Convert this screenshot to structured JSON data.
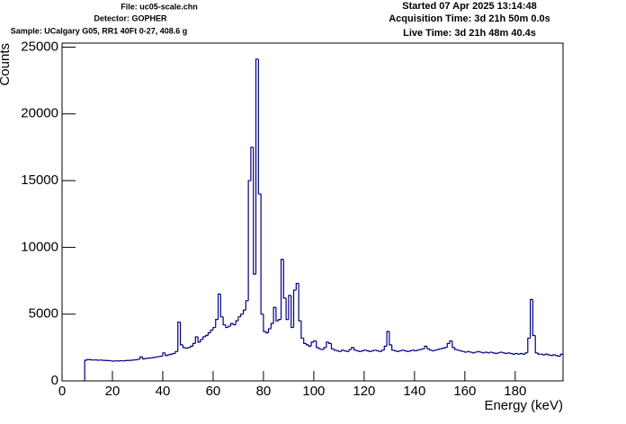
{
  "header": {
    "file": "File: uc05-scale.chn",
    "detector": "Detector: GOPHER",
    "sample": "Sample: UCalgary G05, RR1 40Ft 0-27, 408.6 g",
    "started": "Started 07 Apr 2025 13:14:48",
    "acquisition": "Acquisition Time: 3d 21h 50m 0.0s",
    "live": "Live Time: 3d 21h 48m 40.4s"
  },
  "chart_data": {
    "type": "histogram",
    "x_label": "Energy (keV)",
    "y_label": "Counts",
    "color": "#00007f",
    "xlim": [
      0,
      199
    ],
    "ylim": [
      0,
      25300
    ],
    "xticks": [
      0,
      20,
      40,
      60,
      80,
      100,
      120,
      140,
      160,
      180
    ],
    "yticks": [
      0,
      5000,
      10000,
      15000,
      20000,
      25000
    ],
    "bins": [
      9,
      10,
      11,
      12,
      13,
      14,
      15,
      16,
      17,
      18,
      19,
      20,
      21,
      22,
      23,
      24,
      25,
      26,
      27,
      28,
      29,
      30,
      31,
      32,
      33,
      34,
      35,
      36,
      37,
      38,
      39,
      40,
      41,
      42,
      43,
      44,
      45,
      46,
      47,
      48,
      49,
      50,
      51,
      52,
      53,
      54,
      55,
      56,
      57,
      58,
      59,
      60,
      61,
      62,
      63,
      64,
      65,
      66,
      67,
      68,
      69,
      70,
      71,
      72,
      73,
      74,
      75,
      76,
      77,
      78,
      79,
      80,
      81,
      82,
      83,
      84,
      85,
      86,
      87,
      88,
      89,
      90,
      91,
      92,
      93,
      94,
      95,
      96,
      97,
      98,
      99,
      100,
      101,
      102,
      103,
      104,
      105,
      106,
      107,
      108,
      109,
      110,
      111,
      112,
      113,
      114,
      115,
      116,
      117,
      118,
      119,
      120,
      121,
      122,
      123,
      124,
      125,
      126,
      127,
      128,
      129,
      130,
      131,
      132,
      133,
      134,
      135,
      136,
      137,
      138,
      139,
      140,
      141,
      142,
      143,
      144,
      145,
      146,
      147,
      148,
      149,
      150,
      151,
      152,
      153,
      154,
      155,
      156,
      157,
      158,
      159,
      160,
      161,
      162,
      163,
      164,
      165,
      166,
      167,
      168,
      169,
      170,
      171,
      172,
      173,
      174,
      175,
      176,
      177,
      178,
      179,
      180,
      181,
      182,
      183,
      184,
      185,
      186,
      187,
      188,
      189,
      190,
      191,
      192,
      193,
      194,
      195,
      196,
      197,
      198,
      199
    ],
    "values": [
      1550,
      1600,
      1580,
      1560,
      1570,
      1550,
      1560,
      1540,
      1530,
      1520,
      1500,
      1480,
      1500,
      1490,
      1510,
      1500,
      1520,
      1530,
      1540,
      1560,
      1580,
      1620,
      1800,
      1650,
      1680,
      1700,
      1720,
      1750,
      1780,
      1820,
      1850,
      2100,
      1900,
      1950,
      2000,
      2050,
      2200,
      4400,
      2700,
      2500,
      2450,
      2500,
      2600,
      2800,
      3300,
      2900,
      3100,
      3300,
      3400,
      3600,
      3800,
      4000,
      4600,
      6500,
      4800,
      4200,
      4000,
      4100,
      4300,
      4200,
      4500,
      4800,
      5000,
      5300,
      6000,
      15000,
      17500,
      8000,
      24100,
      14000,
      5000,
      3700,
      3600,
      3900,
      4300,
      5500,
      4500,
      4600,
      9100,
      6200,
      4600,
      6400,
      4000,
      6800,
      7300,
      4500,
      3200,
      2800,
      2700,
      2600,
      2900,
      3000,
      2500,
      2400,
      2350,
      2500,
      2900,
      2800,
      2400,
      2300,
      2250,
      2200,
      2300,
      2250,
      2200,
      2350,
      2500,
      2300,
      2250,
      2200,
      2250,
      2300,
      2250,
      2200,
      2250,
      2300,
      2250,
      2200,
      2300,
      2600,
      3700,
      2700,
      2300,
      2250,
      2200,
      2250,
      2300,
      2250,
      2200,
      2250,
      2300,
      2250,
      2300,
      2350,
      2400,
      2600,
      2400,
      2300,
      2250,
      2300,
      2350,
      2400,
      2450,
      2500,
      2800,
      3000,
      2500,
      2350,
      2300,
      2250,
      2200,
      2150,
      2200,
      2150,
      2100,
      2150,
      2200,
      2150,
      2100,
      2150,
      2100,
      2150,
      2100,
      2050,
      2100,
      2150,
      2100,
      2050,
      2100,
      2050,
      2000,
      2050,
      2000,
      2050,
      2000,
      2100,
      3200,
      6100,
      3400,
      2100,
      2000,
      2000,
      1950,
      2000,
      1950,
      1900,
      1950,
      1900,
      1850,
      2000
    ]
  }
}
